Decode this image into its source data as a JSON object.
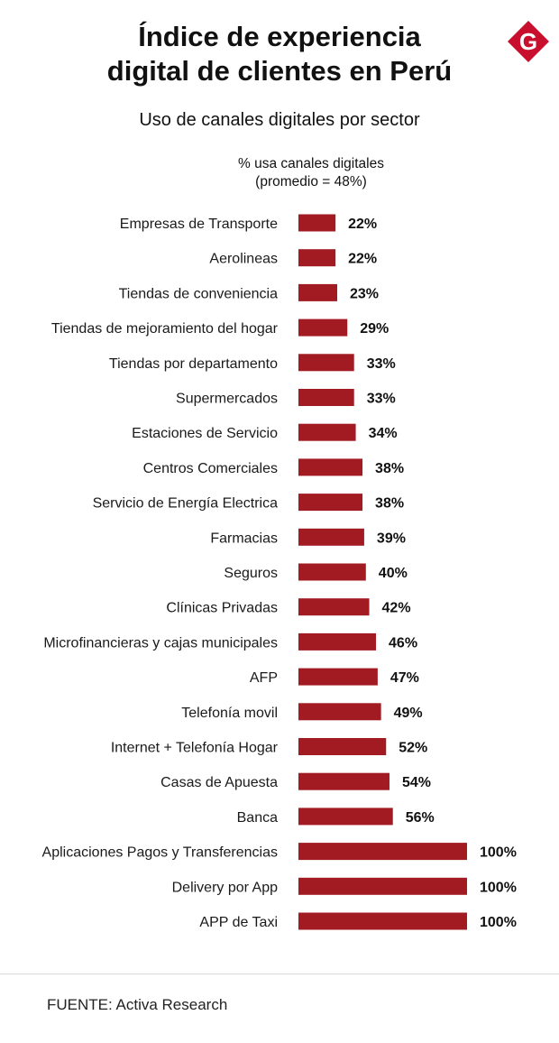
{
  "title_line1": "Índice de experiencia",
  "title_line2": "digital de clientes en Perú",
  "logo_letter": "G",
  "colors": {
    "bar": "#a31b22",
    "logo": "#c8102e"
  },
  "chart_data": {
    "type": "bar",
    "orientation": "horizontal",
    "title": "Uso de canales digitales por sector",
    "xlabel_line1": "% usa canales digitales",
    "xlabel_line2": "(promedio = 48%)",
    "value_suffix": "%",
    "xlim": [
      0,
      100
    ],
    "grid": false,
    "categories": [
      "Empresas de Transporte",
      "Aerolineas",
      "Tiendas de conveniencia",
      "Tiendas de mejoramiento del hogar",
      "Tiendas por departamento",
      "Supermercados",
      "Estaciones de Servicio",
      "Centros Comerciales",
      "Servicio de Energía Electrica",
      "Farmacias",
      "Seguros",
      "Clínicas Privadas",
      "Microfinancieras y cajas municipales",
      "AFP",
      "Telefonía movil",
      "Internet + Telefonía Hogar",
      "Casas de Apuesta",
      "Banca",
      "Aplicaciones Pagos y Transferencias",
      "Delivery por App",
      "APP de Taxi"
    ],
    "values": [
      22,
      22,
      23,
      29,
      33,
      33,
      34,
      38,
      38,
      39,
      40,
      42,
      46,
      47,
      49,
      52,
      54,
      56,
      100,
      100,
      100
    ],
    "value_labels": [
      "22%",
      "22%",
      "23%",
      "29%",
      "33%",
      "33%",
      "34%",
      "38%",
      "38%",
      "39%",
      "40%",
      "42%",
      "46%",
      "47%",
      "49%",
      "52%",
      "54%",
      "56%",
      "100%",
      "100%",
      "100%"
    ]
  },
  "source": "FUENTE: Activa Research"
}
